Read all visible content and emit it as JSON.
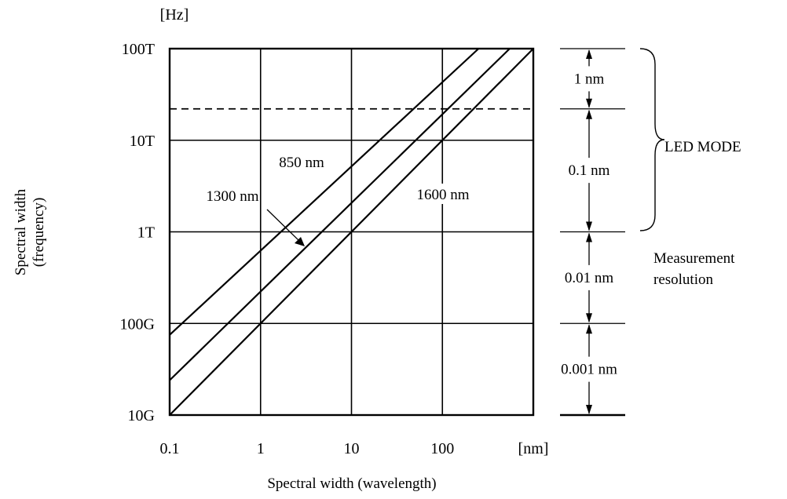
{
  "chart_data": {
    "type": "line",
    "title": "",
    "x_axis": {
      "label": "Spectral width (wavelength)",
      "unit": "[nm]",
      "scale": "log",
      "range": [
        0.1,
        1000
      ],
      "ticks": [
        0.1,
        1,
        10,
        100
      ],
      "tick_labels": [
        "0.1",
        "1",
        "10",
        "100"
      ]
    },
    "y_axis": {
      "label_line1": "Spectral width",
      "label_line2": "(frequency)",
      "unit": "[Hz]",
      "scale": "log",
      "range": [
        10000000000.0,
        100000000000000.0
      ],
      "ticks": [
        10000000000.0,
        100000000000.0,
        1000000000000.0,
        10000000000000.0,
        100000000000000.0
      ],
      "tick_labels": [
        "10G",
        "100G",
        "1T",
        "10T",
        "100T"
      ]
    },
    "grid": true,
    "series": [
      {
        "name": "850 nm",
        "points": [
          [
            0.1,
            75000000000.0
          ],
          [
            250,
            100000000000000.0
          ]
        ]
      },
      {
        "name": "1300 nm",
        "points": [
          [
            0.1,
            24000000000.0
          ],
          [
            550,
            100000000000000.0
          ]
        ]
      },
      {
        "name": "1600 nm",
        "points": [
          [
            0.1,
            10000000000.0
          ],
          [
            1000,
            100000000000000.0
          ]
        ]
      }
    ],
    "reference_line": {
      "style": "dashed",
      "y": 22000000000000.0
    },
    "resolution_ranges": [
      {
        "label": "1 nm",
        "y_from": 22000000000000.0,
        "y_to": 100000000000000.0
      },
      {
        "label": "0.1 nm",
        "y_from": 1000000000000.0,
        "y_to": 22000000000000.0
      },
      {
        "label": "0.01 nm",
        "y_from": 100000000000.0,
        "y_to": 1000000000000.0
      },
      {
        "label": "0.001 nm",
        "y_from": 10000000000.0,
        "y_to": 100000000000.0
      }
    ],
    "annotations": {
      "led_mode": "LED MODE",
      "measurement_line1": "Measurement",
      "measurement_line2": "resolution"
    }
  }
}
